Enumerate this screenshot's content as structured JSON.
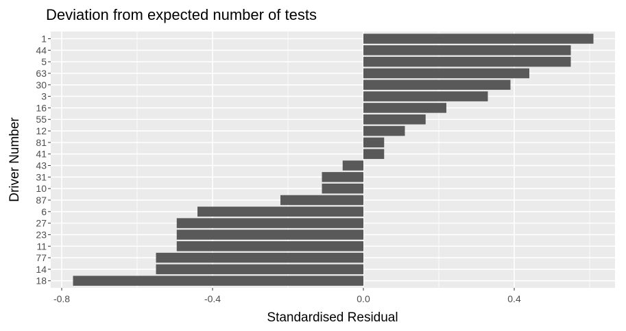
{
  "chart_data": {
    "type": "bar",
    "orientation": "horizontal",
    "title": "Deviation from expected number of tests",
    "xlabel": "Standardised Residual",
    "ylabel": "Driver Number",
    "categories": [
      "1",
      "44",
      "5",
      "63",
      "30",
      "3",
      "16",
      "55",
      "12",
      "81",
      "41",
      "43",
      "31",
      "10",
      "87",
      "6",
      "27",
      "23",
      "11",
      "77",
      "14",
      "18"
    ],
    "values": [
      0.61,
      0.55,
      0.55,
      0.44,
      0.39,
      0.33,
      0.22,
      0.165,
      0.11,
      0.055,
      0.055,
      -0.055,
      -0.11,
      -0.11,
      -0.22,
      -0.44,
      -0.495,
      -0.495,
      -0.495,
      -0.55,
      -0.55,
      -0.77
    ],
    "xlim": [
      -0.8,
      0.64
    ],
    "xticks": [
      -0.8,
      -0.4,
      0.0,
      0.4
    ],
    "xtick_labels": [
      "-0.8",
      "-0.4",
      "0.0",
      "0.4"
    ],
    "grid": true,
    "colors": {
      "bar": "#595959",
      "panel": "#ebebeb",
      "grid": "#ffffff",
      "tick_text": "#4d4d4d"
    }
  }
}
